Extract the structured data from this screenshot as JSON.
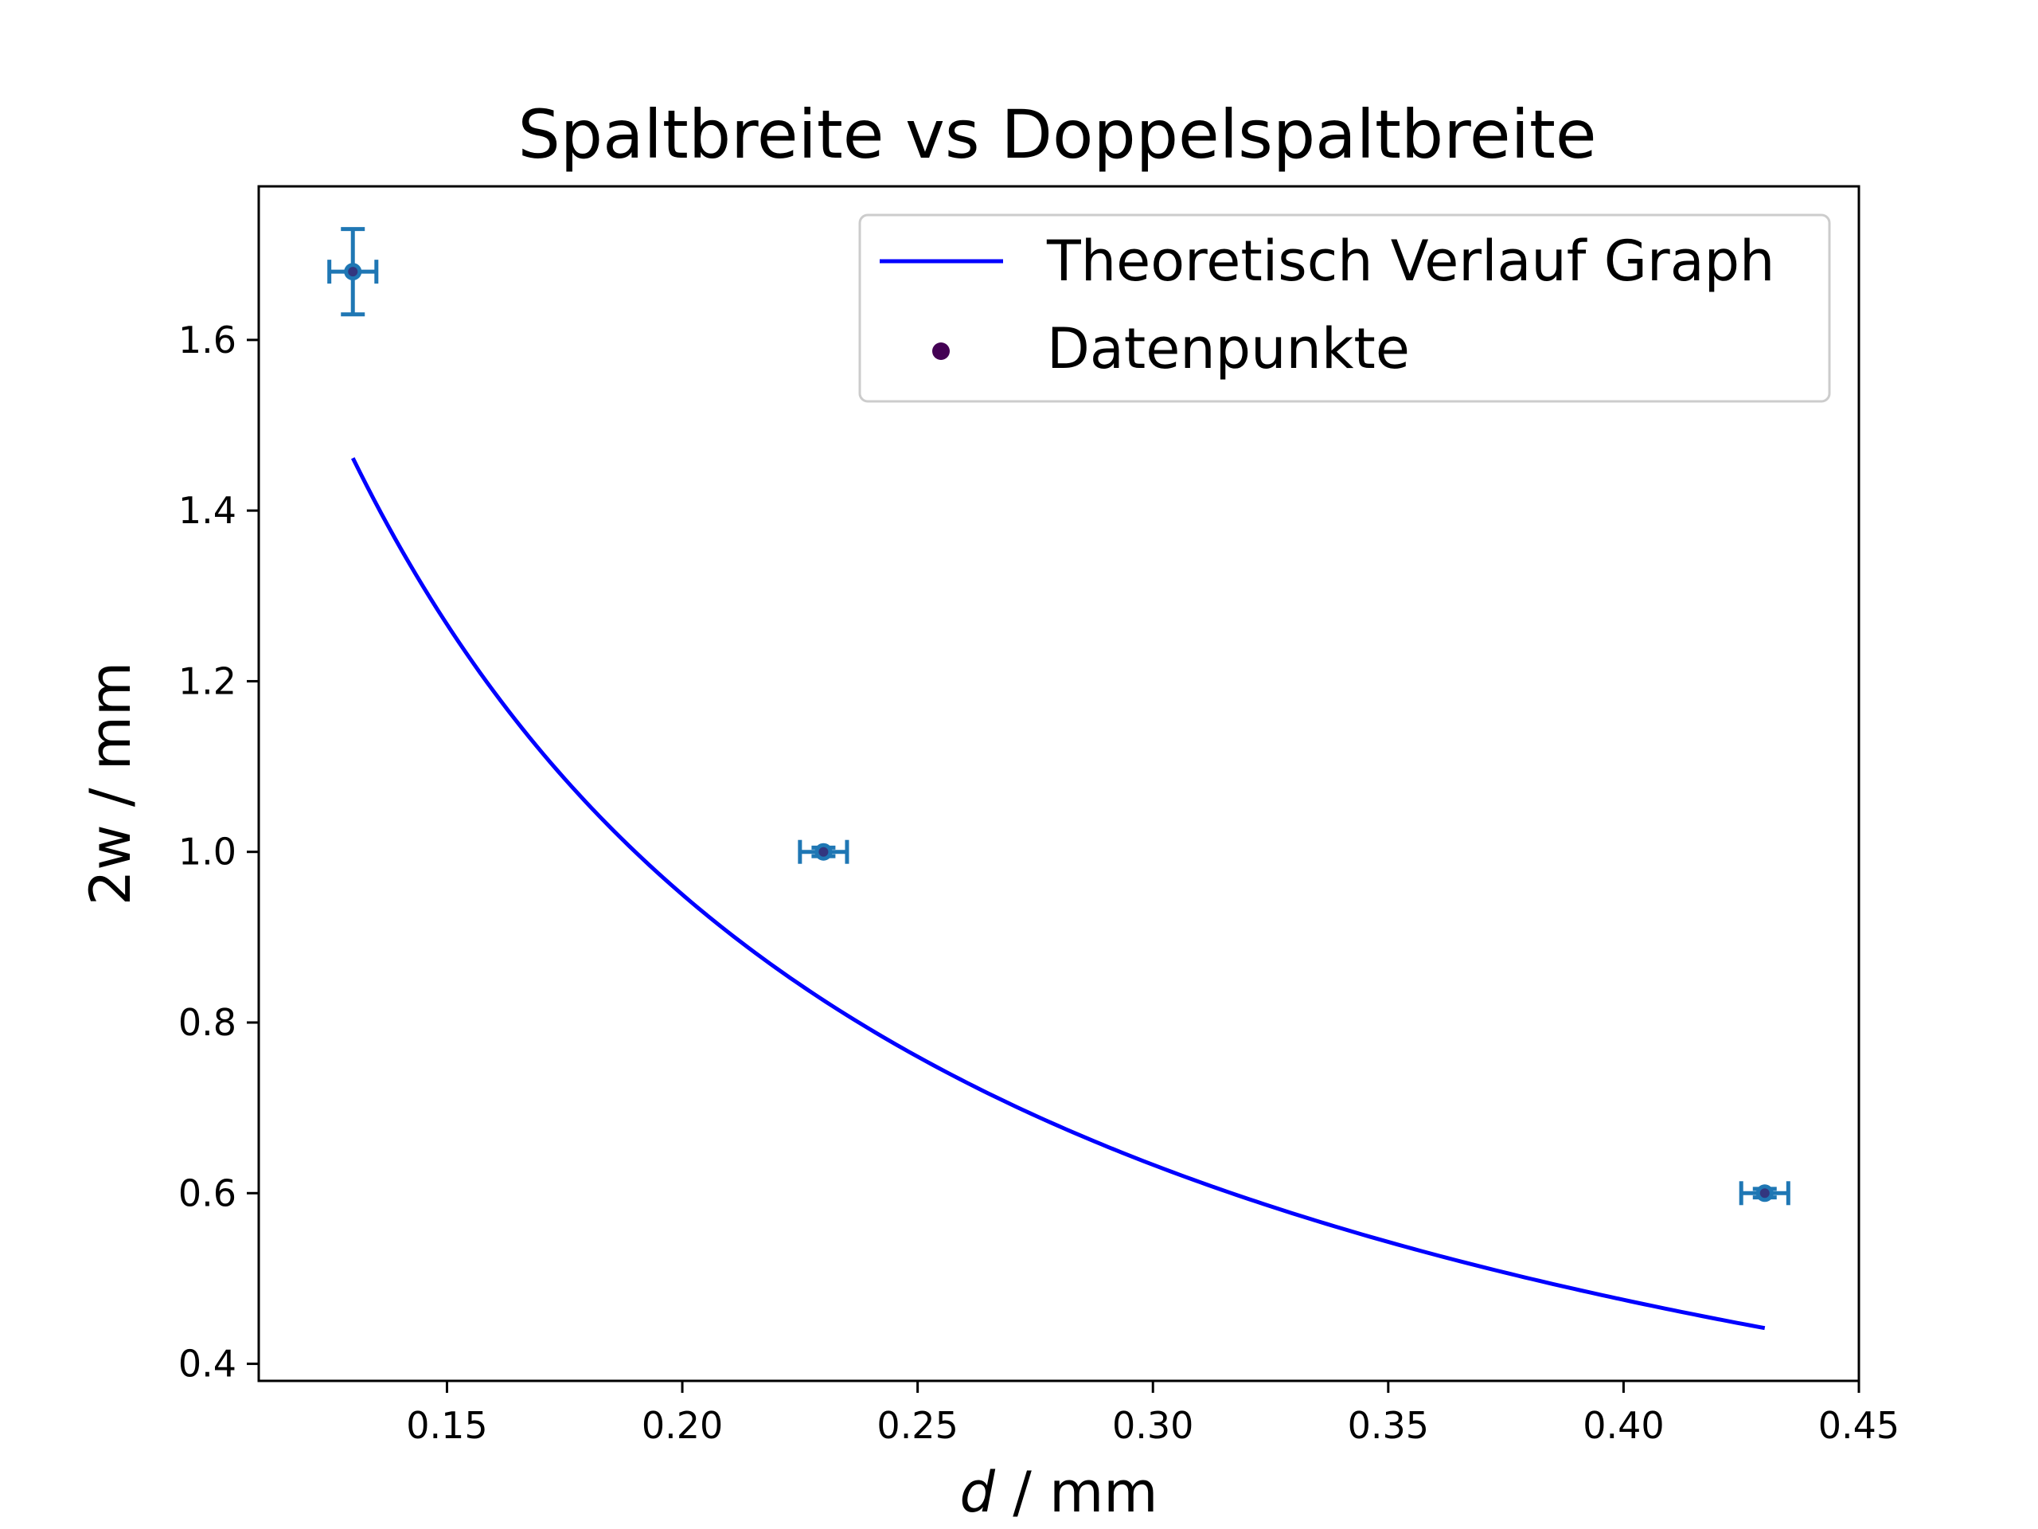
{
  "chart_data": {
    "type": "scatter",
    "title": "Spaltbreite vs Doppelspaltbreite",
    "xlabel_var": "d",
    "xlabel_unit": " / mm",
    "ylabel_var": "2w",
    "ylabel_unit": " / mm",
    "xlim": [
      0.11,
      0.45
    ],
    "ylim": [
      0.38,
      1.78
    ],
    "xticks": [
      0.15,
      0.2,
      0.25,
      0.3,
      0.35,
      0.4,
      0.45
    ],
    "xtick_labels": [
      "0.15",
      "0.20",
      "0.25",
      "0.30",
      "0.35",
      "0.40",
      "0.45"
    ],
    "yticks": [
      0.4,
      0.6,
      0.8,
      1.0,
      1.2,
      1.4,
      1.6
    ],
    "ytick_labels": [
      "0.4",
      "0.6",
      "0.8",
      "1.0",
      "1.2",
      "1.4",
      "1.6"
    ],
    "grid": false,
    "legend_position": "top-right",
    "series": [
      {
        "name": "Theoretisch Verlauf Graph",
        "kind": "line",
        "color": "#0000ff",
        "model": "y = k / x",
        "k": 0.19,
        "x_range": [
          0.13,
          0.43
        ]
      },
      {
        "name": "Datenpunkte",
        "kind": "scatter",
        "color": "#440154",
        "points": [
          {
            "x": 0.13,
            "y": 1.68,
            "xerr": 0.005,
            "yerr": 0.05
          },
          {
            "x": 0.23,
            "y": 1.0,
            "xerr": 0.005,
            "yerr": 0.005
          },
          {
            "x": 0.43,
            "y": 0.6,
            "xerr": 0.005,
            "yerr": 0.005
          }
        ]
      }
    ],
    "errorbar_color": "#1f77b4"
  }
}
